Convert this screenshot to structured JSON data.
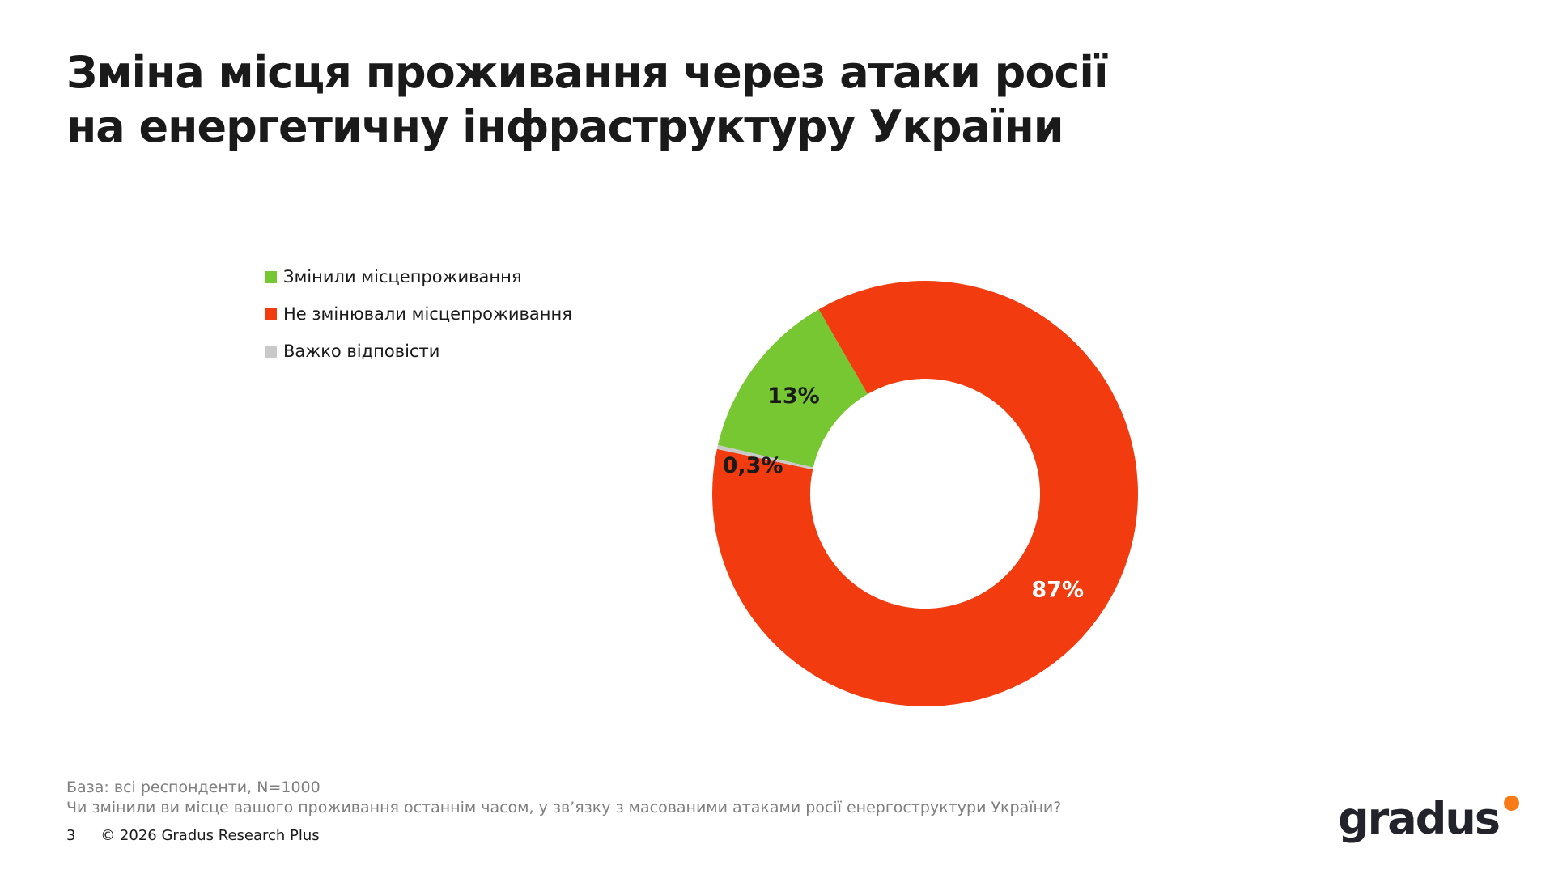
{
  "slide": {
    "title_line1": "Зміна місця проживання через атаки росії",
    "title_line2": "на енергетичну інфраструктуру України",
    "footer": {
      "base_note": "База: всі респонденти, N=1000",
      "question_note": "Чи змінили ви місце вашого проживання останнім часом, у зв’язку з масованими атаками росії енергоструктури України?",
      "page_number": "3",
      "copyright": "© 2026 Gradus Research Plus"
    },
    "logo": {
      "wordmark": "gradus",
      "text_color": "#23232b",
      "dot_color": "#f97b17"
    }
  },
  "chart_data": {
    "type": "pie",
    "subtype": "donut",
    "title": "",
    "legend_position": "left",
    "direction": "clockwise",
    "start_angle_deg": 283.2,
    "inner_radius_ratio": 0.54,
    "segments": [
      {
        "label": "Змінили місцепроживання",
        "value": 13,
        "display": "13%",
        "color": "#76c732",
        "label_color": "#1a1a1a"
      },
      {
        "label": "Не змінювали місцепроживання",
        "value": 86.7,
        "display": "87%",
        "color": "#f23b0e",
        "label_color": "#ffffff"
      },
      {
        "label": "Важко відповісти",
        "value": 0.3,
        "display": "0,3%",
        "color": "#c9c9c9",
        "label_color": "#1a1a1a"
      }
    ]
  }
}
